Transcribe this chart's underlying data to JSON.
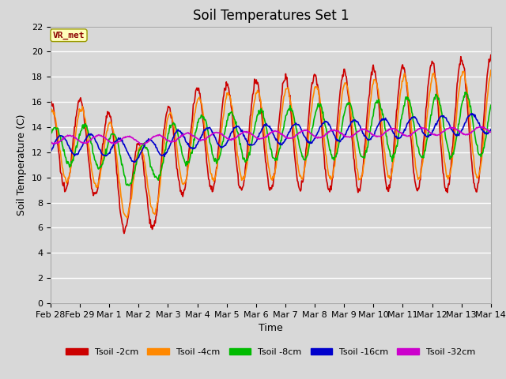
{
  "title": "Soil Temperatures Set 1",
  "xlabel": "Time",
  "ylabel": "Soil Temperature (C)",
  "annotation": "VR_met",
  "ylim": [
    0,
    22
  ],
  "yticks": [
    0,
    2,
    4,
    6,
    8,
    10,
    12,
    14,
    16,
    18,
    20,
    22
  ],
  "xtick_labels": [
    "Feb 28",
    "Feb 29",
    "Mar 1",
    "Mar 2",
    "Mar 3",
    "Mar 4",
    "Mar 5",
    "Mar 6",
    "Mar 7",
    "Mar 8",
    "Mar 9",
    "Mar 10",
    "Mar 11",
    "Mar 12",
    "Mar 13",
    "Mar 14"
  ],
  "series_colors": [
    "#cc0000",
    "#ff8800",
    "#00bb00",
    "#0000cc",
    "#cc00cc"
  ],
  "series_labels": [
    "Tsoil -2cm",
    "Tsoil -4cm",
    "Tsoil -8cm",
    "Tsoil -16cm",
    "Tsoil -32cm"
  ],
  "background_color": "#d8d8d8",
  "plot_bg_color": "#d8d8d8",
  "grid_color": "#ffffff",
  "title_fontsize": 12,
  "axis_fontsize": 9,
  "tick_fontsize": 8
}
